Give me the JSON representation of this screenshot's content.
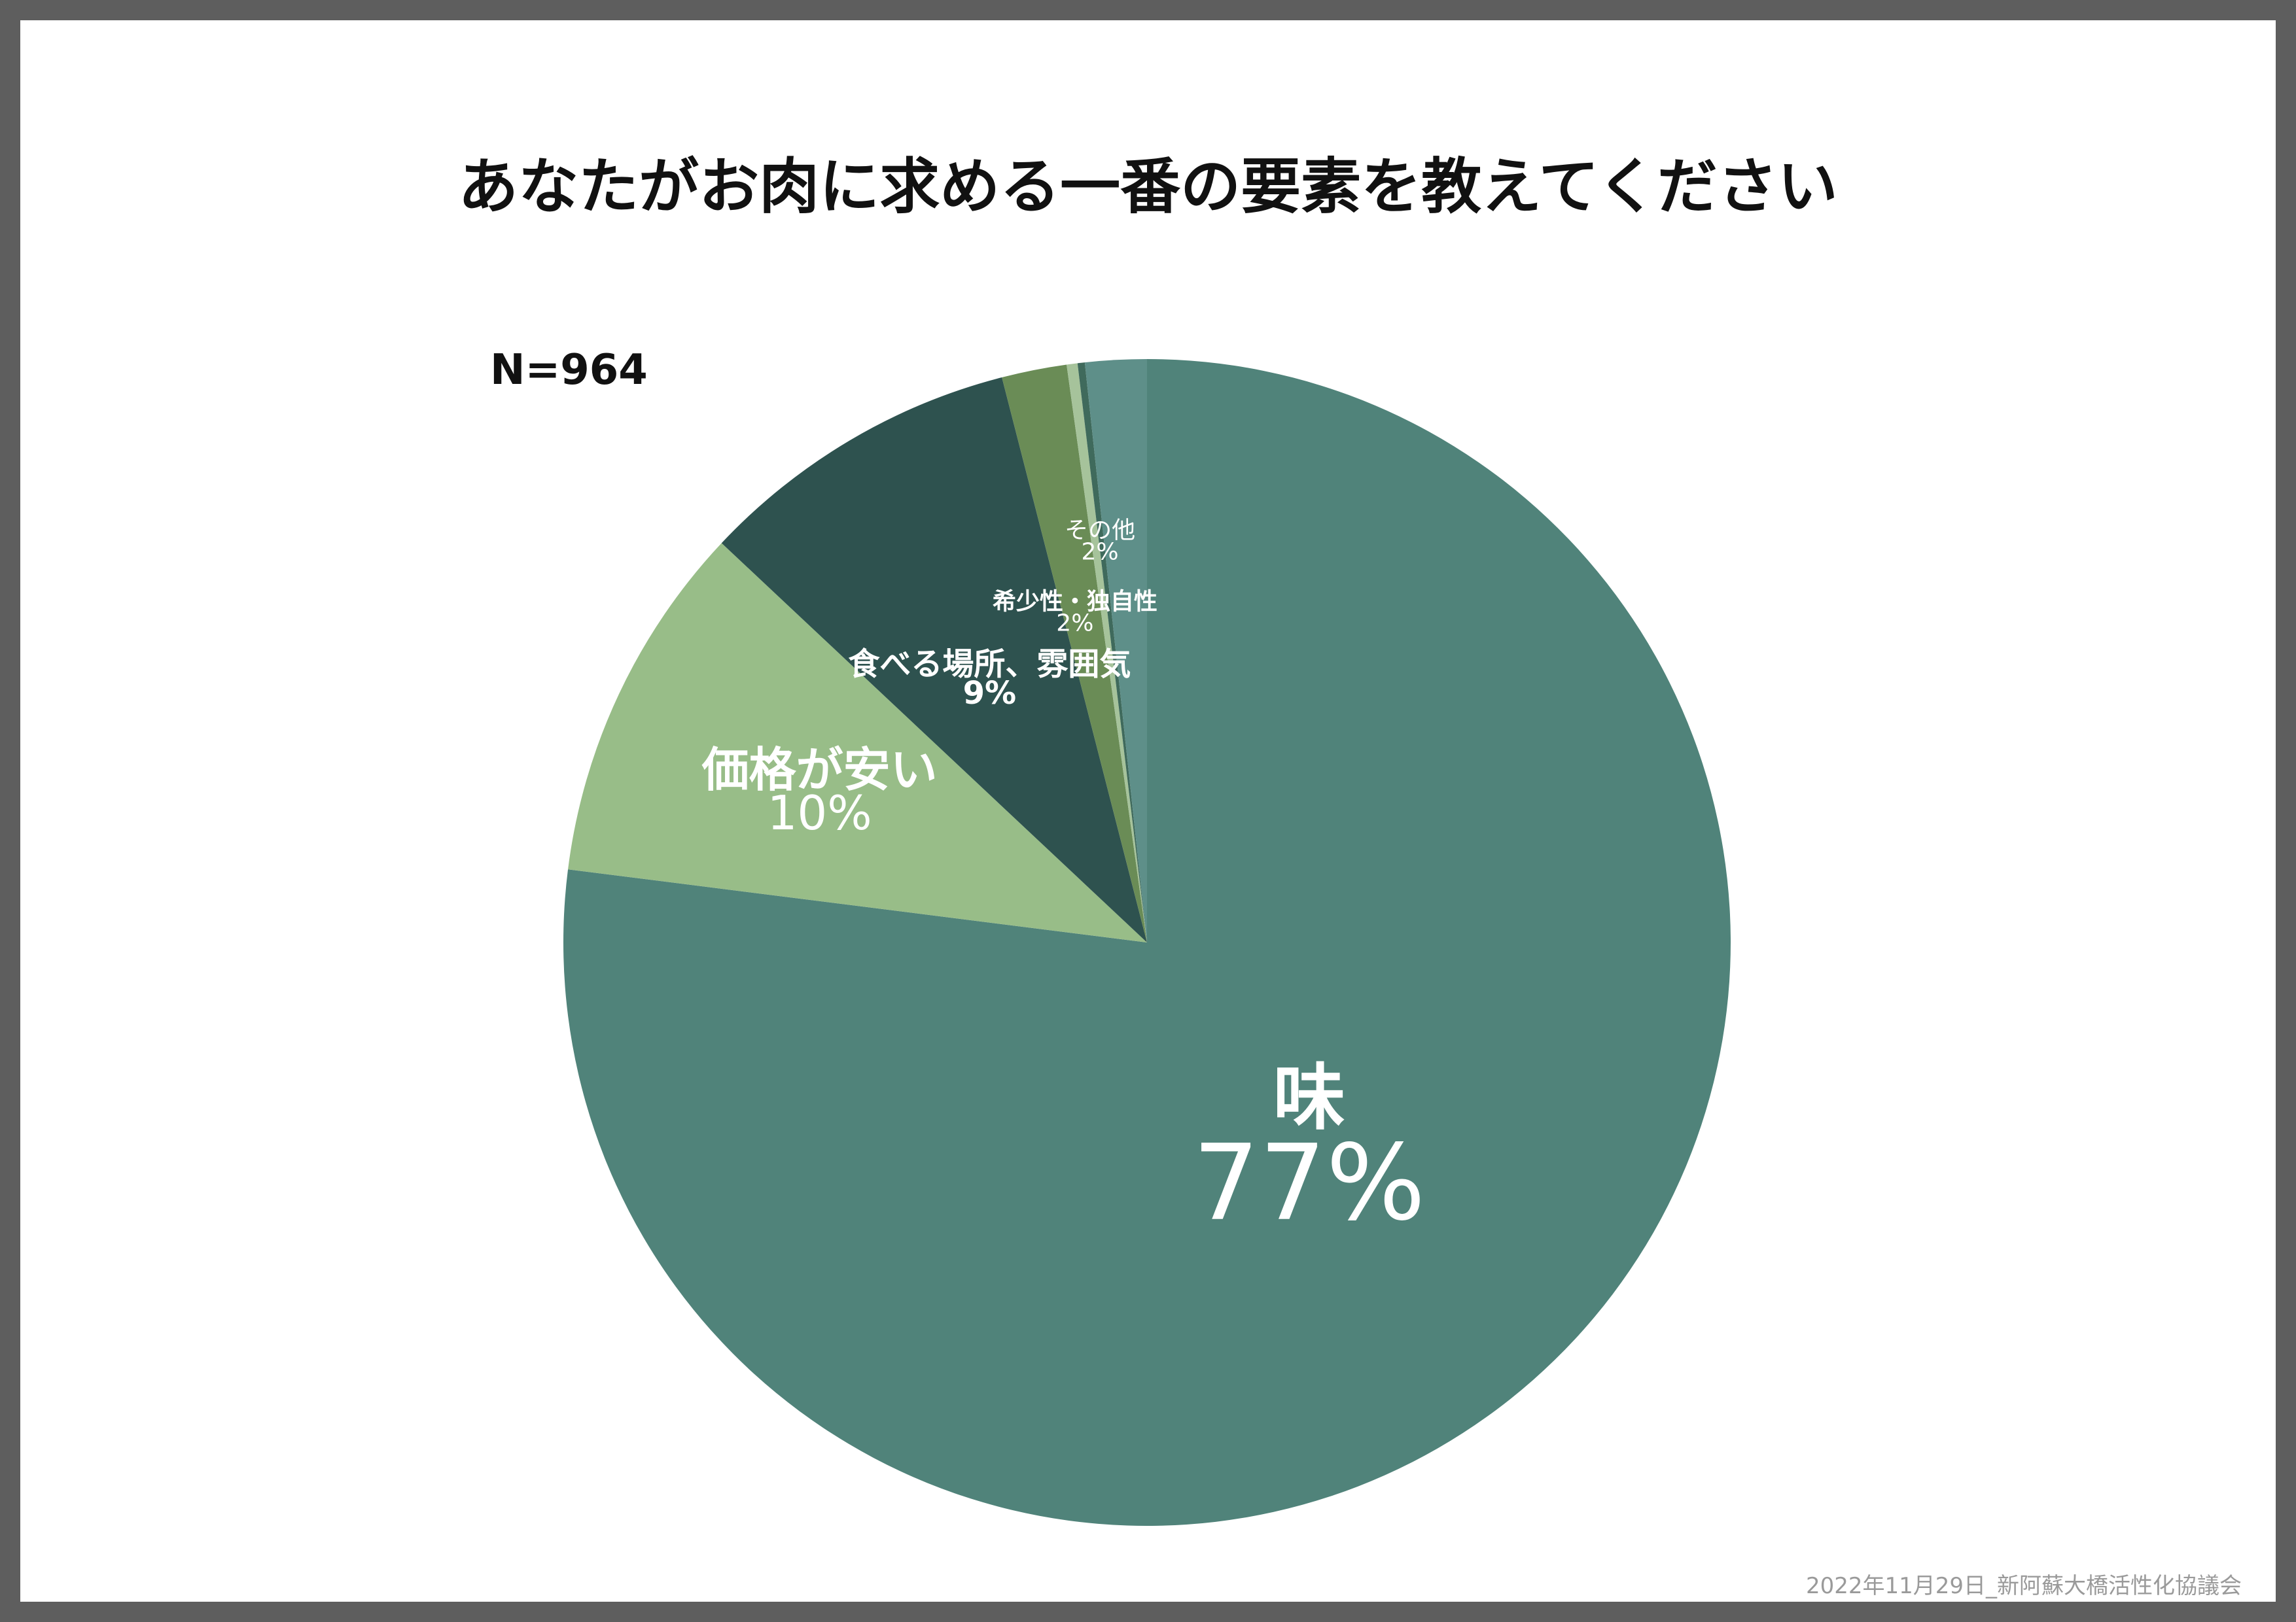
{
  "chart_data": {
    "type": "pie",
    "title": "あなたがお肉に求める一番の要素を教えてください",
    "sample_size": "N=964",
    "slices": [
      {
        "name": "味",
        "percent_label": "77%",
        "value": 77.0,
        "color": "#50837a"
      },
      {
        "name": "価格が安い",
        "percent_label": "10%",
        "value": 10.0,
        "color": "#98bd88"
      },
      {
        "name": "食べる場所、雰囲気",
        "percent_label": "9%",
        "value": 9.0,
        "color": "#2e524f"
      },
      {
        "name": "希少性・独自性",
        "percent_label": "2%",
        "value": 1.8,
        "color": "#6a8c56"
      },
      {
        "name": "",
        "percent_label": "",
        "value": 0.3,
        "color": "#a6c39b"
      },
      {
        "name": "",
        "percent_label": "",
        "value": 0.2,
        "color": "#3f6a5c"
      },
      {
        "name": "その他",
        "percent_label": "2%",
        "value": 1.7,
        "color": "#5e8f89"
      }
    ],
    "start_angle_deg": 0,
    "direction": "clockwise",
    "legend": "none"
  },
  "footer": {
    "credit": "2022年11月29日_新阿蘇大橋活性化協議会"
  }
}
